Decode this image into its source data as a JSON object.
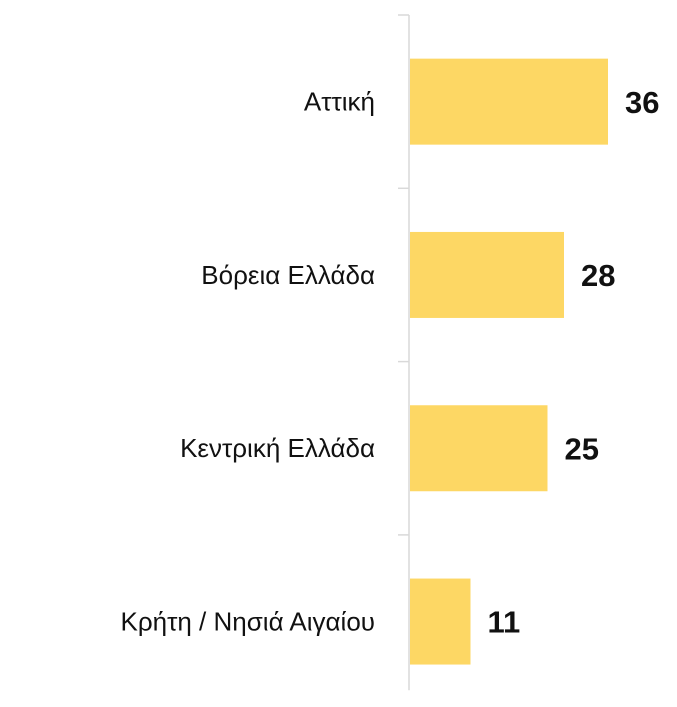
{
  "chart_data": {
    "type": "bar",
    "orientation": "horizontal",
    "categories": [
      "Αττική",
      "Βόρεια Ελλάδα",
      "Κεντρική Ελλάδα",
      "Κρήτη / Νησιά Αιγαίου"
    ],
    "values": [
      36,
      28,
      25,
      11
    ],
    "color": "#fdd764"
  }
}
